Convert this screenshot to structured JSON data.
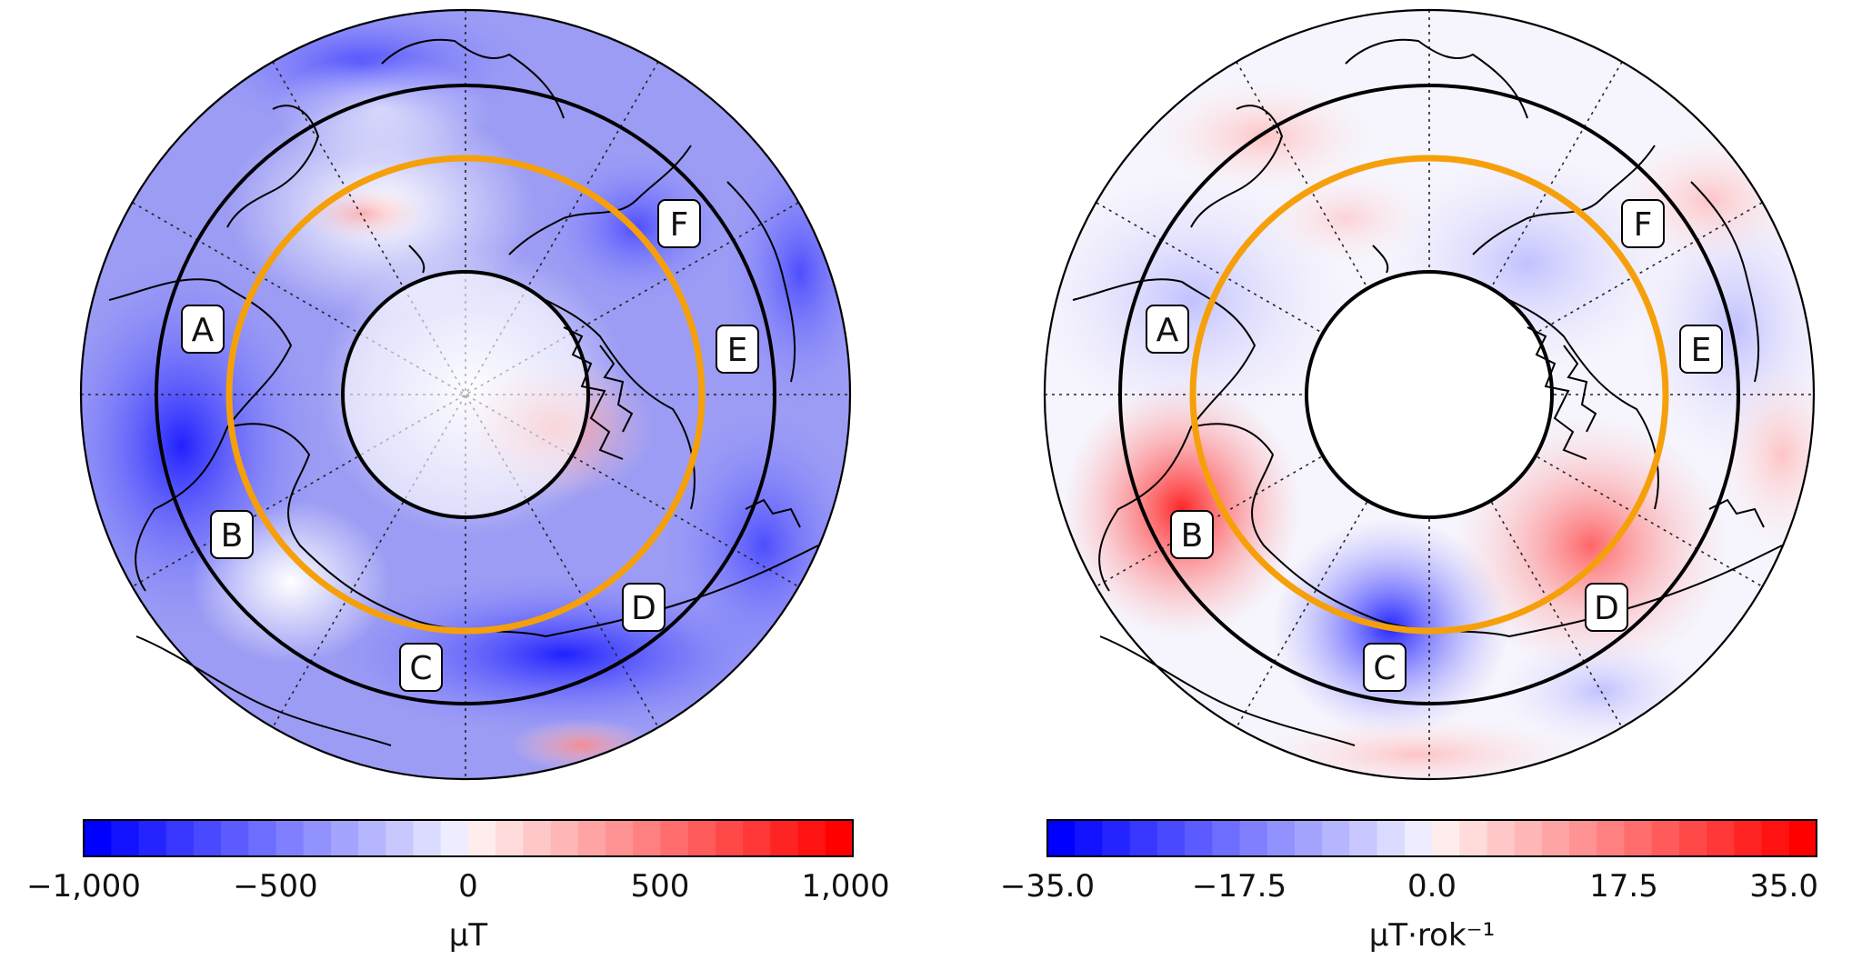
{
  "panels": [
    {
      "id": "left",
      "region_labels": [
        "A",
        "B",
        "C",
        "D",
        "E",
        "F"
      ],
      "colorbar": {
        "ticks": [
          "−1,000",
          "−500",
          "0",
          "500",
          "1,000"
        ],
        "unit": "μT",
        "min": -1000,
        "max": 1000
      }
    },
    {
      "id": "right",
      "region_labels": [
        "A",
        "B",
        "C",
        "D",
        "E",
        "F"
      ],
      "colorbar": {
        "ticks": [
          "−35.0",
          "−17.5",
          "0.0",
          "17.5",
          "35.0"
        ],
        "unit": "μT·rok⁻¹",
        "min": -35,
        "max": 35
      }
    }
  ],
  "colors": {
    "negative": "#0000ff",
    "positive": "#ff0000",
    "ring_orange": "#f5a00a",
    "ring_black": "#000000"
  }
}
